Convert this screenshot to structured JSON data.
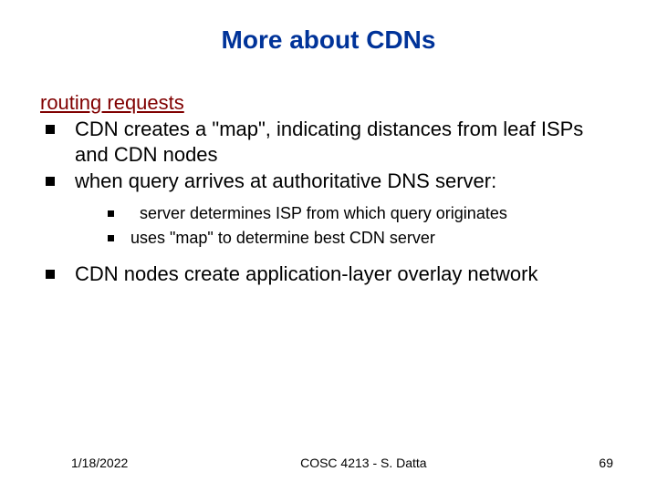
{
  "title": "More about CDNs",
  "section_header": "routing requests",
  "bullets": {
    "b1": "CDN creates a \"map\", indicating distances from leaf ISPs and CDN nodes",
    "b2": "when query arrives at authoritative DNS server:",
    "b3": "CDN nodes create application-layer overlay network"
  },
  "subbullets": {
    "s1": "server determines ISP from which query originates",
    "s2": "uses \"map\" to determine best CDN server"
  },
  "footer": {
    "date": "1/18/2022",
    "center": "COSC 4213 - S. Datta",
    "page": "69"
  },
  "colors": {
    "title": "#003399",
    "section_header": "#800000",
    "text": "#000000",
    "background": "#ffffff"
  },
  "typography": {
    "title_fontsize": 28,
    "body_fontsize": 22,
    "sub_fontsize": 18,
    "footer_fontsize": 14,
    "font_family": "Arial"
  }
}
